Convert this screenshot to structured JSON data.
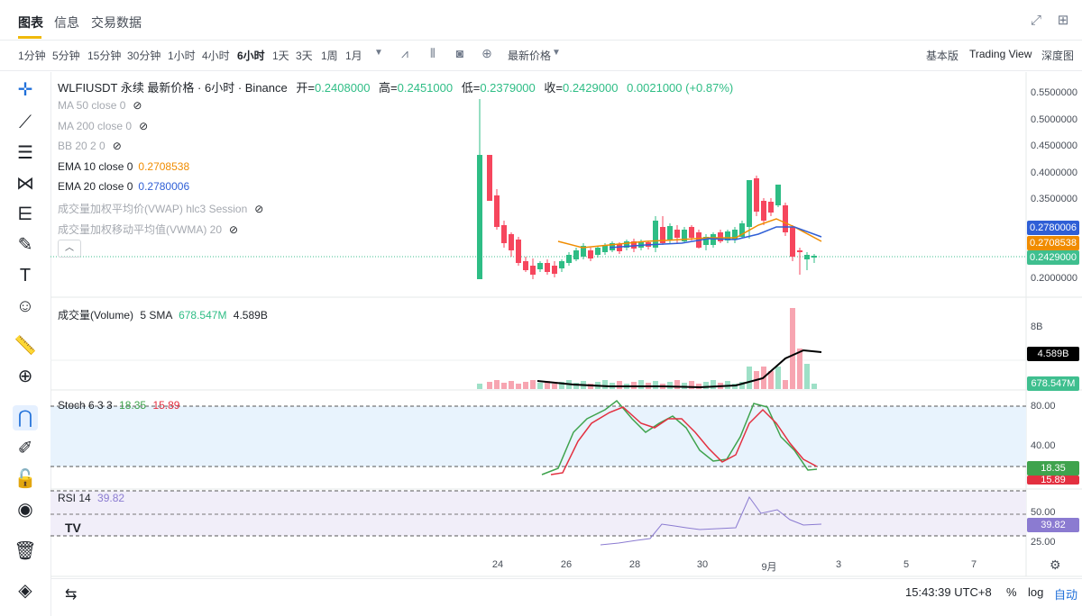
{
  "tabs": [
    {
      "label": "图表"
    },
    {
      "label": "信息"
    },
    {
      "label": "交易数据"
    }
  ],
  "toolbar": {
    "intervals": [
      "1分钟",
      "5分钟",
      "15分钟",
      "30分钟",
      "1小时",
      "4小时",
      "6小时",
      "1天",
      "3天",
      "1周",
      "1月"
    ],
    "active_interval": "6小时",
    "price_type": "最新价格",
    "views": [
      "基本版",
      "Trading View",
      "深度图"
    ]
  },
  "symbol_line": {
    "title": "WLFIUSDT 永续 最新价格 · 6小时 · Binance",
    "open_label": "开=",
    "open": "0.2408000",
    "high_label": "高=",
    "high": "0.2451000",
    "low_label": "低=",
    "low": "0.2379000",
    "close_label": "收=",
    "close": "0.2429000",
    "change": "0.0021000 (+0.87%)"
  },
  "indicators": [
    {
      "label": "MA 50 close 0",
      "value": "",
      "color": "#a5a9b0",
      "hidden": true
    },
    {
      "label": "MA 200 close 0",
      "value": "",
      "color": "#a5a9b0",
      "hidden": true
    },
    {
      "label": "BB 20 2 0",
      "value": "",
      "color": "#a5a9b0",
      "hidden": true
    },
    {
      "label": "EMA 10 close 0",
      "value": "0.2708538",
      "color": "#f08c00",
      "hidden": false
    },
    {
      "label": "EMA 20 close 0",
      "value": "0.2780006",
      "color": "#2f5fd6",
      "hidden": false
    },
    {
      "label": "成交量加权平均价(VWAP) hlc3 Session",
      "value": "",
      "color": "#a5a9b0",
      "hidden": true
    },
    {
      "label": "成交量加权移动平均值(VWMA) 20",
      "value": "",
      "color": "#a5a9b0",
      "hidden": true
    }
  ],
  "price_axis": [
    "0.5500000",
    "0.5000000",
    "0.4500000",
    "0.4000000",
    "0.3500000",
    "0.2000000"
  ],
  "price_tags": [
    {
      "value": "0.2780006",
      "color": "#2f5fd6"
    },
    {
      "value": "0.2708538",
      "color": "#f08c00"
    },
    {
      "value": "0.2429000",
      "color": "#3fbf8f"
    }
  ],
  "volume": {
    "label": "成交量(Volume)",
    "sma_label": "5 SMA",
    "sma_value": "678.547M",
    "value": "4.589B",
    "axis": "8B",
    "tag_black": "4.589B",
    "tag_green": "678.547M"
  },
  "stoch": {
    "label": "Stoch 6 3 3",
    "k": "18.35",
    "d": "15.89",
    "axis": [
      "80.00",
      "40.00"
    ],
    "tag_k": "18.35",
    "tag_d": "15.89"
  },
  "rsi": {
    "label": "RSI 14",
    "value": "39.82",
    "axis": [
      "50.00",
      "25.00"
    ],
    "tag": "39.82"
  },
  "x_axis": [
    "24",
    "26",
    "28",
    "30",
    "9月",
    "3",
    "5",
    "7"
  ],
  "footer": {
    "time": "15:43:39 UTC+8",
    "percent": "%",
    "log": "log",
    "auto": "自动"
  },
  "colors": {
    "up": "#2ebd85",
    "down": "#f6465d",
    "ema10": "#f08c00",
    "ema20": "#2f5fd6",
    "stoch_k": "#3fa34d",
    "stoch_d": "#e33040",
    "rsi": "#8b7bd1"
  }
}
